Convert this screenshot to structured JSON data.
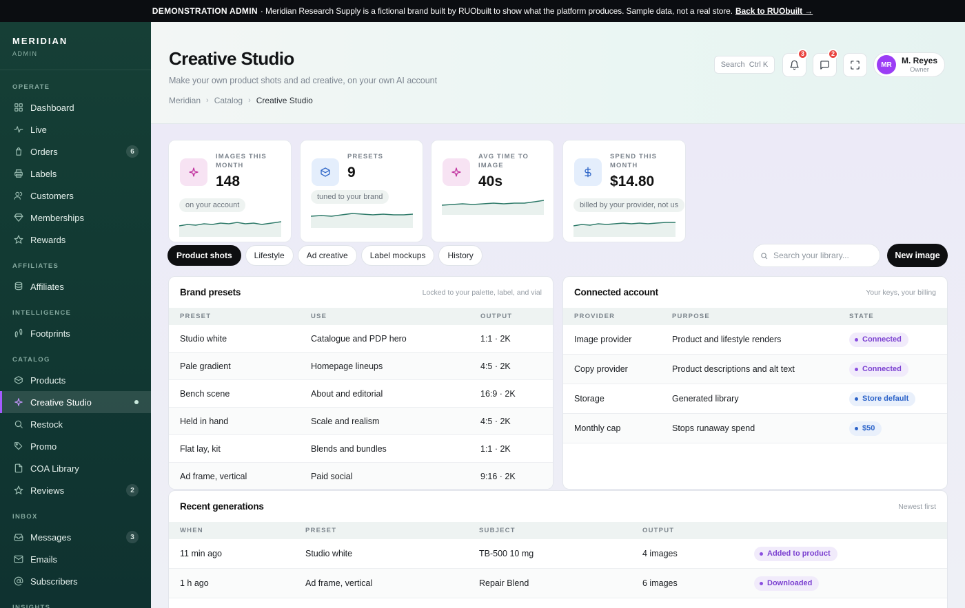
{
  "banner": {
    "strong": "DEMONSTRATION ADMIN",
    "text": "· Meridian Research Supply is a fictional brand built by RUObuilt to show what the platform produces. Sample data, not a real store.",
    "link": "Back to RUObuilt →"
  },
  "sidebar": {
    "brand": "MERIDIAN",
    "brand_sub": "ADMIN",
    "sections": [
      {
        "label": "OPERATE",
        "items": [
          {
            "label": "Dashboard",
            "icon": "grid-icon"
          },
          {
            "label": "Live",
            "icon": "pulse-icon"
          },
          {
            "label": "Orders",
            "icon": "bag-icon",
            "badge": "6"
          },
          {
            "label": "Labels",
            "icon": "printer-icon"
          },
          {
            "label": "Customers",
            "icon": "users-icon"
          },
          {
            "label": "Memberships",
            "icon": "gem-icon"
          },
          {
            "label": "Rewards",
            "icon": "star-icon"
          }
        ]
      },
      {
        "label": "AFFILIATES",
        "items": [
          {
            "label": "Affiliates",
            "icon": "stack-icon"
          }
        ]
      },
      {
        "label": "INTELLIGENCE",
        "items": [
          {
            "label": "Footprints",
            "icon": "footprints-icon"
          }
        ]
      },
      {
        "label": "CATALOG",
        "items": [
          {
            "label": "Products",
            "icon": "box-icon"
          },
          {
            "label": "Creative Studio",
            "icon": "sparkle-icon",
            "active": true
          },
          {
            "label": "Restock",
            "icon": "search-icon"
          },
          {
            "label": "Promo",
            "icon": "tag-icon"
          },
          {
            "label": "COA Library",
            "icon": "file-icon"
          },
          {
            "label": "Reviews",
            "icon": "star-icon",
            "badge": "2"
          }
        ]
      },
      {
        "label": "INBOX",
        "items": [
          {
            "label": "Messages",
            "icon": "inbox-icon",
            "badge": "3"
          },
          {
            "label": "Emails",
            "icon": "mail-icon"
          },
          {
            "label": "Subscribers",
            "icon": "at-icon"
          }
        ]
      },
      {
        "label": "INSIGHTS",
        "items": []
      }
    ]
  },
  "header": {
    "title": "Creative Studio",
    "subtitle": "Make your own product shots and ad creative, on your own AI account",
    "breadcrumb": [
      "Meridian",
      "Catalog",
      "Creative Studio"
    ],
    "search_label": "Search",
    "search_shortcut": "Ctrl K",
    "notifications_count": "3",
    "messages_count": "2",
    "user": {
      "initials": "MR",
      "name": "M. Reyes",
      "role": "Owner"
    }
  },
  "stats": [
    {
      "label": "IMAGES THIS MONTH",
      "value": "148",
      "note": "on your account",
      "icon": "sparkle-icon",
      "icon_bg": "#f7e3f3",
      "icon_color": "#c0309e"
    },
    {
      "label": "PRESETS",
      "value": "9",
      "note": "tuned to your brand",
      "icon": "box-icon",
      "icon_bg": "#e4eefc",
      "icon_color": "#2f66c8"
    },
    {
      "label": "AVG TIME TO IMAGE",
      "value": "40s",
      "note": "",
      "icon": "sparkle-icon",
      "icon_bg": "#f7e3f3",
      "icon_color": "#c0309e"
    },
    {
      "label": "SPEND THIS MONTH",
      "value": "$14.80",
      "note": "billed by your provider, not us",
      "icon": "dollar-icon",
      "icon_bg": "#e4eefc",
      "icon_color": "#2f66c8"
    }
  ],
  "tabs": [
    {
      "label": "Product shots",
      "active": true
    },
    {
      "label": "Lifestyle"
    },
    {
      "label": "Ad creative"
    },
    {
      "label": "Label mockups"
    },
    {
      "label": "History"
    }
  ],
  "library_search_placeholder": "Search your library...",
  "new_image_label": "New image",
  "presets_panel": {
    "title": "Brand presets",
    "hint": "Locked to your palette, label, and vial",
    "columns": [
      "PRESET",
      "USE",
      "OUTPUT"
    ],
    "rows": [
      [
        "Studio white",
        "Catalogue and PDP hero",
        "1:1 · 2K"
      ],
      [
        "Pale gradient",
        "Homepage lineups",
        "4:5 · 2K"
      ],
      [
        "Bench scene",
        "About and editorial",
        "16:9 · 2K"
      ],
      [
        "Held in hand",
        "Scale and realism",
        "4:5 · 2K"
      ],
      [
        "Flat lay, kit",
        "Blends and bundles",
        "1:1 · 2K"
      ],
      [
        "Ad frame, vertical",
        "Paid social",
        "9:16 · 2K"
      ]
    ]
  },
  "account_panel": {
    "title": "Connected account",
    "hint": "Your keys, your billing",
    "columns": [
      "PROVIDER",
      "PURPOSE",
      "STATE"
    ],
    "rows": [
      {
        "provider": "Image provider",
        "purpose": "Product and lifestyle renders",
        "state": "Connected",
        "tone": "purple"
      },
      {
        "provider": "Copy provider",
        "purpose": "Product descriptions and alt text",
        "state": "Connected",
        "tone": "purple"
      },
      {
        "provider": "Storage",
        "purpose": "Generated library",
        "state": "Store default",
        "tone": "blue"
      },
      {
        "provider": "Monthly cap",
        "purpose": "Stops runaway spend",
        "state": "$50",
        "tone": "blue"
      }
    ]
  },
  "recent_panel": {
    "title": "Recent generations",
    "hint": "Newest first",
    "columns": [
      "WHEN",
      "PRESET",
      "SUBJECT",
      "OUTPUT"
    ],
    "rows": [
      {
        "when": "11 min ago",
        "preset": "Studio white",
        "subject": "TB-500 10 mg",
        "output": "4 images",
        "status": "Added to product"
      },
      {
        "when": "1 h ago",
        "preset": "Ad frame, vertical",
        "subject": "Repair Blend",
        "output": "6 images",
        "status": "Downloaded"
      }
    ]
  }
}
